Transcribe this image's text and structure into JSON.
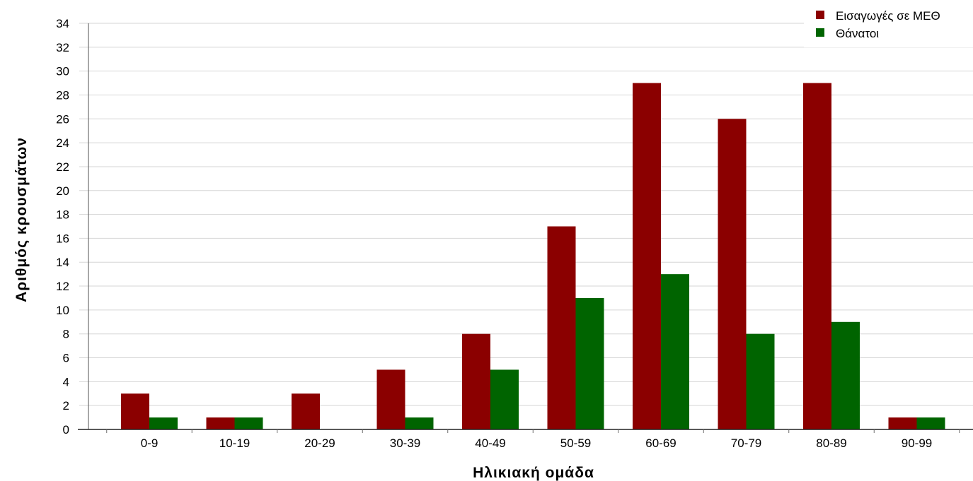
{
  "chart_data": {
    "type": "bar",
    "categories": [
      "0-9",
      "10-19",
      "20-29",
      "30-39",
      "40-49",
      "50-59",
      "60-69",
      "70-79",
      "80-89",
      "90-99"
    ],
    "series": [
      {
        "name": "Εισαγωγές σε ΜΕΘ",
        "values": [
          3,
          1,
          3,
          5,
          8,
          17,
          29,
          26,
          29,
          1
        ],
        "color": "#8b0000"
      },
      {
        "name": "Θάνατοι",
        "values": [
          1,
          1,
          0,
          1,
          5,
          11,
          13,
          8,
          9,
          1
        ],
        "color": "#006400"
      }
    ],
    "xlabel": "Ηλικιακή ομάδα",
    "ylabel": "Αριθμός κρουσμάτων",
    "ylim": [
      0,
      34
    ],
    "yticks": [
      0,
      2,
      4,
      6,
      8,
      10,
      12,
      14,
      16,
      18,
      20,
      22,
      24,
      26,
      28,
      30,
      32,
      34
    ],
    "grid": true,
    "legend_position": "top-right"
  }
}
